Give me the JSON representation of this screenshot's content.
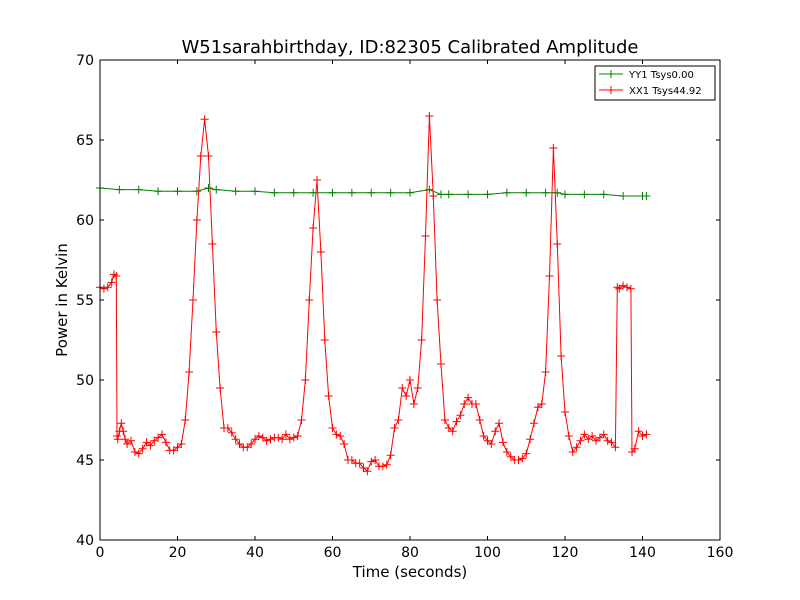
{
  "chart_data": {
    "type": "line",
    "title": "W51sarahbirthday, ID:82305 Calibrated Amplitude",
    "xlabel": "Time (seconds)",
    "ylabel": "Power in Kelvin",
    "xlim": [
      0,
      160
    ],
    "ylim": [
      40,
      70
    ],
    "xticks": [
      "0",
      "20",
      "40",
      "60",
      "80",
      "100",
      "120",
      "140",
      "160"
    ],
    "yticks": [
      "40",
      "45",
      "50",
      "55",
      "60",
      "65",
      "70"
    ],
    "grid": false,
    "legend_position": "top-right",
    "marker": "+",
    "series": [
      {
        "name": "YY1 Tsys0.00",
        "color": "#008000",
        "x": [
          0,
          5,
          10,
          15,
          20,
          25,
          28,
          30,
          35,
          40,
          45,
          50,
          55,
          60,
          65,
          70,
          75,
          80,
          85,
          88,
          90,
          95,
          100,
          105,
          110,
          115,
          118,
          120,
          125,
          130,
          135,
          140,
          141
        ],
        "y": [
          62.0,
          61.9,
          61.9,
          61.8,
          61.8,
          61.8,
          62.0,
          61.9,
          61.8,
          61.8,
          61.7,
          61.7,
          61.7,
          61.7,
          61.7,
          61.7,
          61.7,
          61.7,
          61.9,
          61.6,
          61.6,
          61.6,
          61.6,
          61.7,
          61.7,
          61.7,
          61.7,
          61.6,
          61.6,
          61.6,
          61.5,
          61.5,
          61.5
        ]
      },
      {
        "name": "XX1 Tsys44.92",
        "color": "#ff0000",
        "x": [
          0,
          1,
          2,
          3,
          3.6,
          4.2,
          4.4,
          4.6,
          5,
          5.5,
          6,
          6.5,
          7,
          8,
          9,
          10,
          11,
          12,
          13,
          14,
          15,
          16,
          17,
          18,
          19,
          20,
          21,
          22,
          23,
          24,
          25,
          26,
          27,
          28,
          29,
          30,
          31,
          32,
          33,
          34,
          35,
          36,
          37,
          38,
          39,
          40,
          41,
          42,
          43,
          44,
          45,
          46,
          47,
          48,
          49,
          50,
          51,
          52,
          53,
          54,
          55,
          56,
          57,
          58,
          59,
          60,
          61,
          62,
          63,
          64,
          65,
          66,
          67,
          68,
          69,
          70,
          71,
          72,
          73,
          74,
          75,
          76,
          77,
          78,
          79,
          80,
          81,
          82,
          83,
          84,
          85,
          86,
          87,
          88,
          89,
          90,
          91,
          92,
          93,
          94,
          95,
          96,
          97,
          98,
          99,
          100,
          101,
          102,
          103,
          104,
          105,
          106,
          107,
          108,
          109,
          110,
          111,
          112,
          113,
          114,
          115,
          116,
          117,
          118,
          119,
          120,
          121,
          122,
          123,
          124,
          125,
          126,
          127,
          128,
          129,
          130,
          131,
          132,
          133,
          133.5,
          134,
          135,
          136,
          137,
          137.3,
          138,
          139,
          140,
          141
        ],
        "y": [
          55.8,
          55.7,
          55.8,
          56.1,
          56.6,
          56.5,
          46.5,
          46.3,
          46.8,
          47.3,
          46.8,
          46.3,
          46.0,
          46.2,
          45.5,
          45.4,
          45.7,
          46.1,
          45.9,
          46.2,
          46.4,
          46.6,
          46.1,
          45.6,
          45.6,
          45.8,
          46.0,
          47.5,
          50.5,
          55.0,
          60.0,
          64.0,
          66.3,
          64.0,
          58.5,
          53.0,
          49.5,
          47.0,
          47.0,
          46.7,
          46.3,
          46.0,
          45.8,
          45.8,
          46.0,
          46.3,
          46.5,
          46.4,
          46.2,
          46.3,
          46.4,
          46.4,
          46.3,
          46.6,
          46.3,
          46.4,
          46.5,
          47.5,
          50.0,
          55.0,
          59.5,
          62.5,
          58.0,
          52.5,
          49.0,
          47.0,
          46.6,
          46.5,
          46.0,
          45.0,
          45.0,
          44.8,
          44.8,
          44.5,
          44.3,
          44.9,
          45.0,
          44.6,
          44.6,
          44.7,
          45.3,
          47.0,
          47.5,
          49.5,
          49.0,
          50.0,
          48.5,
          49.5,
          52.5,
          59.0,
          66.5,
          61.5,
          55.0,
          51.0,
          47.5,
          47.0,
          46.8,
          47.4,
          47.8,
          48.5,
          48.9,
          48.5,
          48.5,
          47.5,
          46.5,
          46.2,
          46.0,
          46.8,
          47.3,
          46.1,
          45.5,
          45.2,
          45.0,
          45.0,
          45.1,
          45.4,
          46.3,
          47.3,
          48.3,
          48.5,
          50.5,
          56.5,
          64.5,
          58.5,
          51.5,
          48.0,
          46.5,
          45.5,
          45.8,
          46.2,
          46.6,
          46.3,
          46.5,
          46.2,
          46.4,
          46.6,
          46.2,
          46.1,
          45.8,
          55.8,
          55.7,
          55.9,
          55.8,
          55.7,
          45.5,
          45.7,
          46.8,
          46.5,
          46.6
        ]
      }
    ]
  }
}
